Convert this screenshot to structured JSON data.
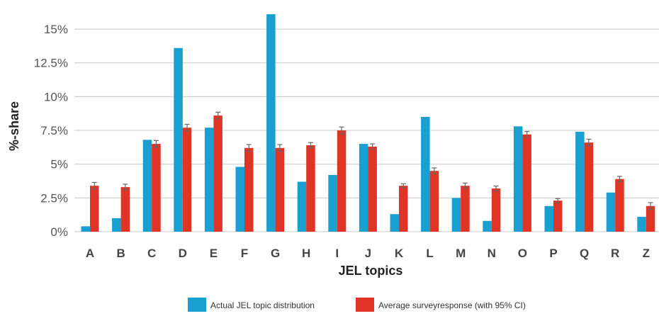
{
  "chart_data": {
    "type": "bar",
    "title": "",
    "xlabel": "JEL topics",
    "ylabel": "%-share",
    "ylim": [
      0,
      16
    ],
    "yticks": [
      0,
      2.5,
      5,
      7.5,
      10,
      12.5,
      15
    ],
    "ytick_labels": [
      "0%",
      "2.5%",
      "5%",
      "7.5%",
      "10%",
      "12.5%",
      "15%"
    ],
    "grid": "horizontal",
    "legend_position": "bottom",
    "categories": [
      "A",
      "B",
      "C",
      "D",
      "E",
      "F",
      "G",
      "H",
      "I",
      "J",
      "K",
      "L",
      "M",
      "N",
      "O",
      "P",
      "Q",
      "R",
      "Z"
    ],
    "series": [
      {
        "name": "Actual JEL topic distribution",
        "color": "#1aa0d0",
        "values": [
          0.4,
          1.0,
          6.8,
          13.6,
          7.7,
          4.8,
          16.1,
          3.7,
          4.2,
          6.5,
          1.3,
          8.5,
          2.5,
          0.8,
          7.8,
          1.9,
          7.4,
          2.9,
          1.1
        ]
      },
      {
        "name": "Average surveyresponse (with 95% CI)",
        "color": "#e03426",
        "values": [
          3.4,
          3.3,
          6.5,
          7.7,
          8.6,
          6.2,
          6.2,
          6.4,
          7.5,
          6.3,
          3.4,
          4.5,
          3.4,
          3.2,
          7.2,
          2.3,
          6.6,
          3.9,
          1.9
        ],
        "ci": [
          0.25,
          0.22,
          0.25,
          0.25,
          0.25,
          0.25,
          0.25,
          0.2,
          0.25,
          0.2,
          0.15,
          0.22,
          0.2,
          0.18,
          0.22,
          0.15,
          0.25,
          0.2,
          0.25
        ]
      }
    ]
  }
}
